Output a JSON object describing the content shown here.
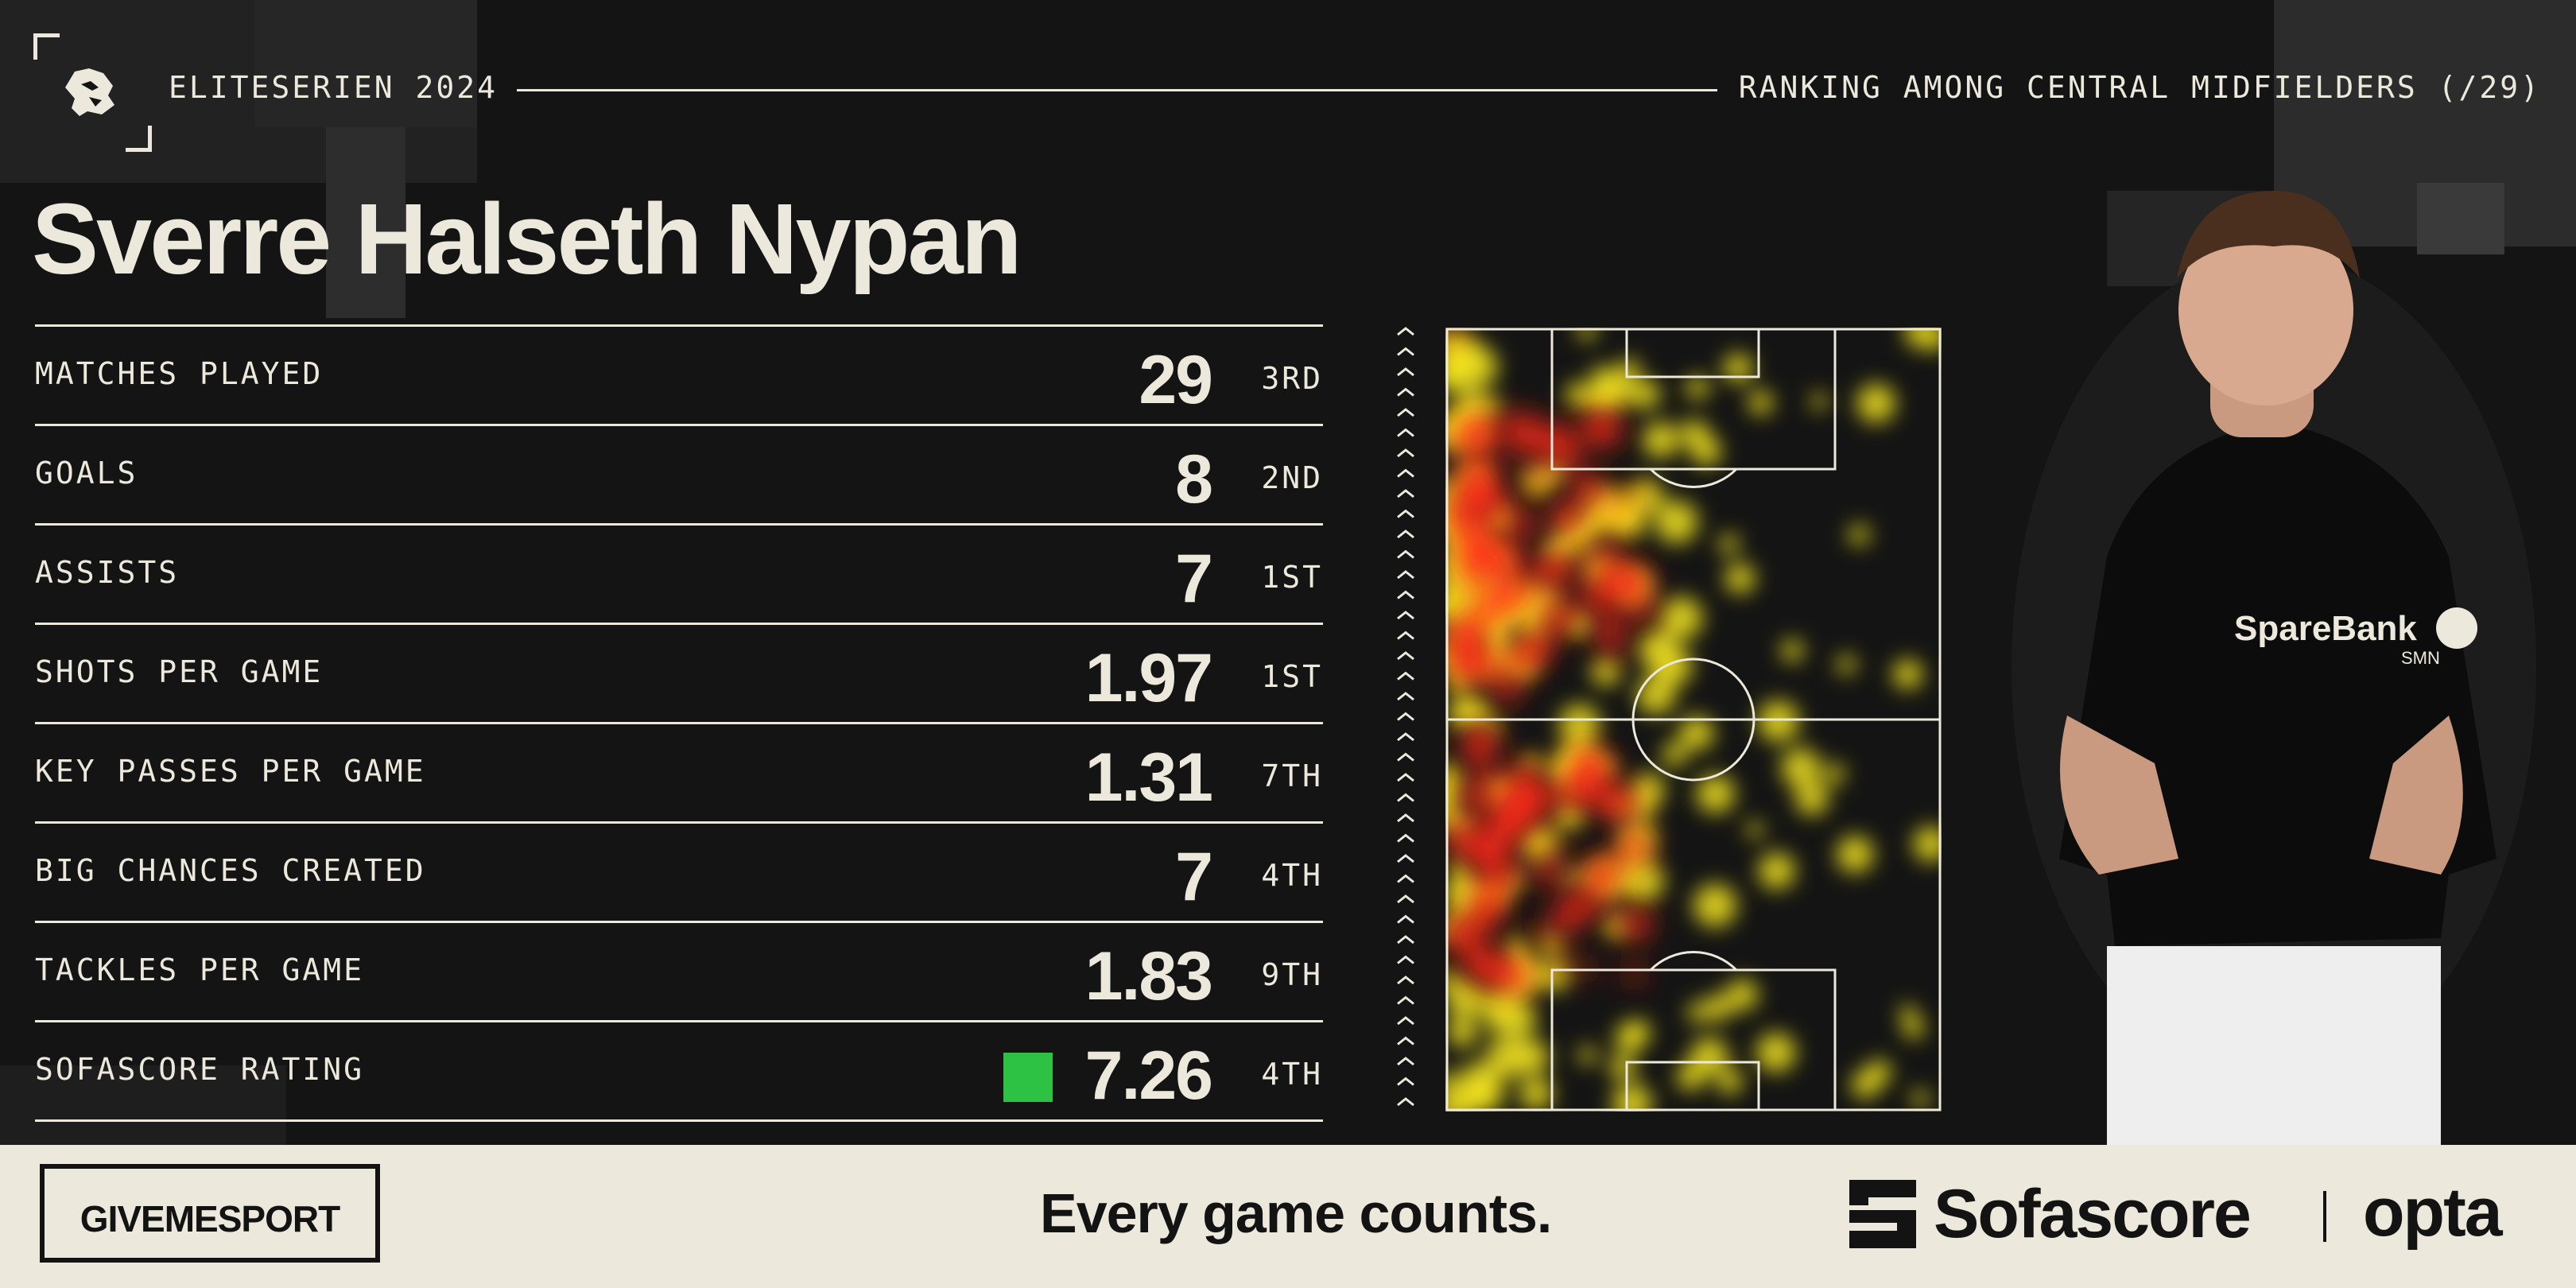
{
  "header": {
    "league": "ELITESERIEN 2024",
    "ranking": "RANKING AMONG CENTRAL MIDFIELDERS (/29)",
    "lion_icon": "lion-head-icon"
  },
  "player": {
    "name": "Sverre Halseth Nypan"
  },
  "stats": [
    {
      "label": "MATCHES PLAYED",
      "value": "29",
      "rank": "3RD"
    },
    {
      "label": "GOALS",
      "value": "8",
      "rank": "2ND"
    },
    {
      "label": "ASSISTS",
      "value": "7",
      "rank": "1ST"
    },
    {
      "label": "SHOTS PER GAME",
      "value": "1.97",
      "rank": "1ST"
    },
    {
      "label": "KEY PASSES PER GAME",
      "value": "1.31",
      "rank": "7TH"
    },
    {
      "label": "BIG CHANCES CREATED",
      "value": "7",
      "rank": "4TH"
    },
    {
      "label": "TACKLES PER GAME",
      "value": "1.83",
      "rank": "9TH"
    },
    {
      "label": "SOFASCORE RATING",
      "value": "7.26",
      "rank": "4TH",
      "rating_color": "#2ec245"
    }
  ],
  "photo": {
    "sponsor": "SpareBank",
    "sponsor_sub": "SMN"
  },
  "footer": {
    "brand": "GIVEMESPORT",
    "tagline": "Every game counts.",
    "sofascore": "Sofascore",
    "opta": "opta"
  },
  "colors": {
    "background": "#141414",
    "text": "#ece8dc",
    "footer_bg": "#ece8dc",
    "rating_green": "#2ec245",
    "heat_red": "#ff2a1a",
    "heat_yellow": "#f4e51e"
  }
}
